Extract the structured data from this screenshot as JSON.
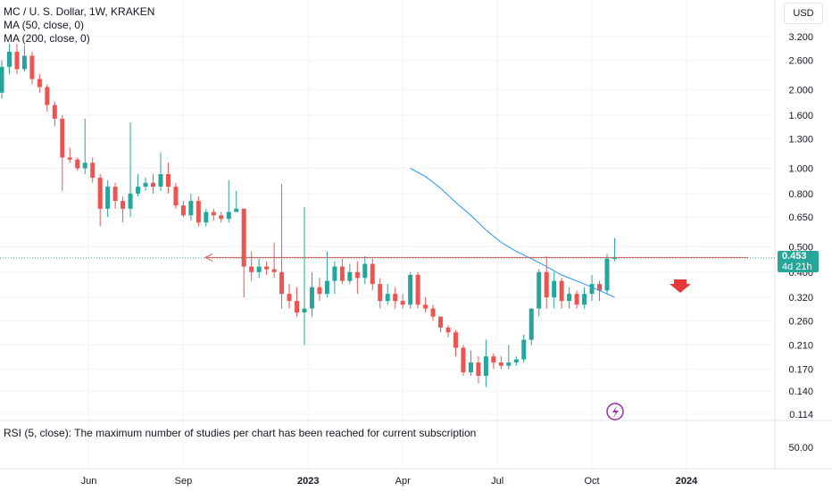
{
  "legend": {
    "symbol": "MC / U. S. Dollar, 1W, KRAKEN",
    "ma50": "MA (50, close, 0)",
    "ma200": "MA (200, close, 0)"
  },
  "currency_button": "USD",
  "rsi_message": "RSI (5, close): The maximum number of studies per chart has been reached for current subscription",
  "last_price": {
    "value": "0.453",
    "countdown": "4d 21h"
  },
  "colors": {
    "up": "#26a69a",
    "down": "#ef5350",
    "ma": "#2196f3",
    "priceline": "#ef5350",
    "lastline": "#26a69a",
    "signal": "#9c27b0"
  },
  "icons": {
    "sell_arrow": "arrow-down-icon",
    "event": "lightning-icon"
  },
  "chart_data": {
    "type": "candlestick",
    "scale": "log",
    "interval": "1W",
    "y_ticks": [
      "3.200",
      "2.600",
      "2.000",
      "1.600",
      "1.300",
      "1.000",
      "0.800",
      "0.650",
      "0.500",
      "0.400",
      "0.320",
      "0.260",
      "0.210",
      "0.170",
      "0.140",
      "0.114"
    ],
    "x_ticks": [
      "Jun",
      "Sep",
      "2023",
      "Apr",
      "Jul",
      "Oct",
      "2024"
    ],
    "rsi_ticks": [
      "50.00"
    ],
    "resistance_level": 0.455,
    "candles": [
      [
        1.95,
        2.45,
        2.6,
        1.85
      ],
      [
        2.45,
        2.8,
        3.0,
        2.3
      ],
      [
        2.8,
        2.4,
        3.0,
        2.3
      ],
      [
        2.4,
        2.7,
        2.95,
        2.35
      ],
      [
        2.7,
        2.2,
        2.8,
        2.1
      ],
      [
        2.2,
        2.05,
        2.3,
        1.95
      ],
      [
        2.05,
        1.75,
        2.1,
        1.65
      ],
      [
        1.75,
        1.55,
        1.8,
        1.45
      ],
      [
        1.55,
        1.1,
        1.6,
        0.82
      ],
      [
        1.1,
        1.08,
        1.2,
        1.05
      ],
      [
        1.08,
        1.0,
        1.1,
        0.98
      ],
      [
        1.0,
        1.05,
        1.55,
        0.95
      ],
      [
        1.05,
        0.92,
        1.1,
        0.88
      ],
      [
        0.92,
        0.7,
        0.95,
        0.6
      ],
      [
        0.7,
        0.85,
        0.9,
        0.65
      ],
      [
        0.85,
        0.75,
        0.88,
        0.7
      ],
      [
        0.75,
        0.7,
        0.78,
        0.62
      ],
      [
        0.7,
        0.8,
        1.5,
        0.65
      ],
      [
        0.8,
        0.85,
        0.95,
        0.78
      ],
      [
        0.85,
        0.88,
        0.92,
        0.82
      ],
      [
        0.88,
        0.85,
        0.95,
        0.8
      ],
      [
        0.85,
        0.95,
        1.15,
        0.82
      ],
      [
        0.95,
        0.85,
        1.05,
        0.8
      ],
      [
        0.85,
        0.72,
        0.88,
        0.7
      ],
      [
        0.72,
        0.66,
        0.75,
        0.65
      ],
      [
        0.66,
        0.75,
        0.8,
        0.63
      ],
      [
        0.75,
        0.62,
        0.78,
        0.6
      ],
      [
        0.62,
        0.68,
        0.7,
        0.6
      ],
      [
        0.68,
        0.66,
        0.7,
        0.63
      ],
      [
        0.66,
        0.64,
        0.68,
        0.62
      ],
      [
        0.64,
        0.68,
        0.9,
        0.62
      ],
      [
        0.68,
        0.7,
        0.82,
        0.68
      ],
      [
        0.7,
        0.42,
        0.7,
        0.32
      ],
      [
        0.42,
        0.4,
        0.48,
        0.37
      ],
      [
        0.4,
        0.42,
        0.45,
        0.38
      ],
      [
        0.42,
        0.41,
        0.44,
        0.39
      ],
      [
        0.41,
        0.4,
        0.52,
        0.38
      ],
      [
        0.4,
        0.33,
        0.87,
        0.29
      ],
      [
        0.33,
        0.31,
        0.36,
        0.29
      ],
      [
        0.31,
        0.28,
        0.35,
        0.27
      ],
      [
        0.28,
        0.29,
        0.71,
        0.21
      ],
      [
        0.29,
        0.35,
        0.4,
        0.27
      ],
      [
        0.35,
        0.33,
        0.38,
        0.31
      ],
      [
        0.33,
        0.37,
        0.48,
        0.32
      ],
      [
        0.37,
        0.42,
        0.44,
        0.33
      ],
      [
        0.42,
        0.37,
        0.45,
        0.36
      ],
      [
        0.37,
        0.4,
        0.43,
        0.36
      ],
      [
        0.4,
        0.38,
        0.44,
        0.33
      ],
      [
        0.38,
        0.43,
        0.46,
        0.36
      ],
      [
        0.43,
        0.36,
        0.45,
        0.34
      ],
      [
        0.36,
        0.31,
        0.38,
        0.29
      ],
      [
        0.31,
        0.33,
        0.36,
        0.3
      ],
      [
        0.33,
        0.31,
        0.35,
        0.29
      ],
      [
        0.31,
        0.3,
        0.33,
        0.29
      ],
      [
        0.3,
        0.39,
        0.4,
        0.29
      ],
      [
        0.39,
        0.3,
        0.4,
        0.29
      ],
      [
        0.3,
        0.29,
        0.32,
        0.28
      ],
      [
        0.29,
        0.27,
        0.3,
        0.26
      ],
      [
        0.27,
        0.245,
        0.27,
        0.235
      ],
      [
        0.245,
        0.235,
        0.25,
        0.225
      ],
      [
        0.235,
        0.205,
        0.24,
        0.19
      ],
      [
        0.205,
        0.165,
        0.21,
        0.16
      ],
      [
        0.165,
        0.18,
        0.2,
        0.16
      ],
      [
        0.18,
        0.16,
        0.19,
        0.15
      ],
      [
        0.16,
        0.19,
        0.22,
        0.145
      ],
      [
        0.19,
        0.18,
        0.195,
        0.17
      ],
      [
        0.18,
        0.175,
        0.19,
        0.17
      ],
      [
        0.175,
        0.18,
        0.21,
        0.17
      ],
      [
        0.18,
        0.185,
        0.19,
        0.175
      ],
      [
        0.185,
        0.22,
        0.23,
        0.18
      ],
      [
        0.22,
        0.29,
        0.29,
        0.21
      ],
      [
        0.29,
        0.4,
        0.41,
        0.27
      ],
      [
        0.4,
        0.32,
        0.46,
        0.29
      ],
      [
        0.32,
        0.37,
        0.4,
        0.29
      ],
      [
        0.37,
        0.31,
        0.38,
        0.29
      ],
      [
        0.31,
        0.33,
        0.35,
        0.29
      ],
      [
        0.33,
        0.3,
        0.34,
        0.29
      ],
      [
        0.3,
        0.33,
        0.35,
        0.29
      ],
      [
        0.33,
        0.36,
        0.39,
        0.31
      ],
      [
        0.36,
        0.34,
        0.37,
        0.31
      ],
      [
        0.34,
        0.45,
        0.47,
        0.33
      ],
      [
        0.45,
        0.453,
        0.54,
        0.44
      ]
    ],
    "ma_line": [
      [
        54,
        1.0
      ],
      [
        56,
        0.93
      ],
      [
        58,
        0.84
      ],
      [
        60,
        0.74
      ],
      [
        62,
        0.66
      ],
      [
        64,
        0.58
      ],
      [
        66,
        0.52
      ],
      [
        68,
        0.48
      ],
      [
        70,
        0.45
      ],
      [
        72,
        0.42
      ],
      [
        74,
        0.39
      ],
      [
        76,
        0.37
      ],
      [
        78,
        0.35
      ],
      [
        80,
        0.33
      ],
      [
        81,
        0.32
      ]
    ]
  }
}
